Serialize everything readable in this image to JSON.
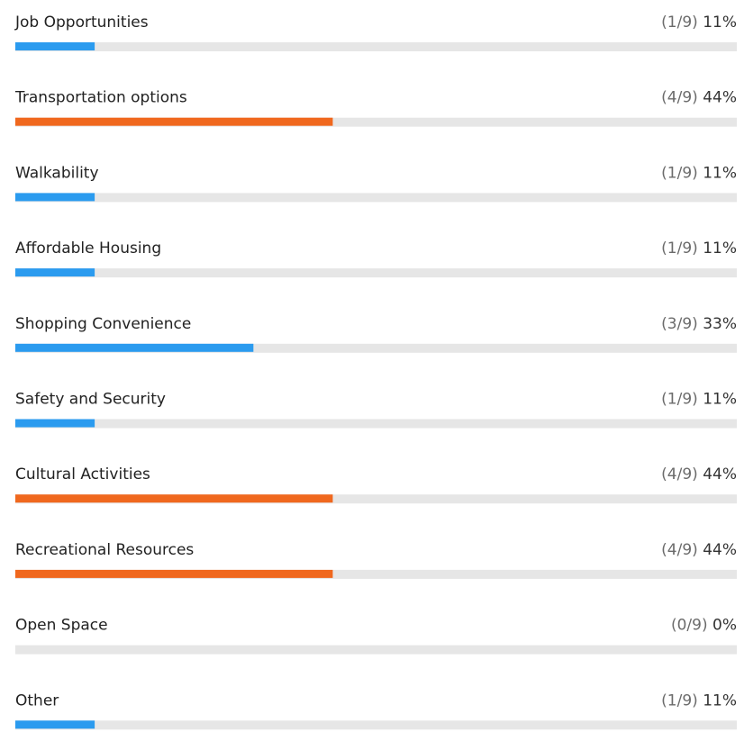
{
  "chart_data": {
    "type": "hbar",
    "categories": [
      "Job Opportunities",
      "Transportation options",
      "Walkability",
      "Affordable Housing",
      "Shopping Convenience",
      "Safety and Security",
      "Cultural Activities",
      "Recreational Resources",
      "Open Space",
      "Other"
    ],
    "count_labels": [
      "(1/9)",
      "(4/9)",
      "(1/9)",
      "(1/9)",
      "(3/9)",
      "(1/9)",
      "(4/9)",
      "(4/9)",
      "(0/9)",
      "(1/9)"
    ],
    "values": [
      11,
      44,
      11,
      11,
      33,
      11,
      44,
      44,
      0,
      11
    ],
    "value_labels": [
      "11%",
      "44%",
      "11%",
      "11%",
      "33%",
      "11%",
      "44%",
      "44%",
      "0%",
      "11%"
    ],
    "colors": [
      "#2b9bef",
      "#f0681e",
      "#2b9bef",
      "#2b9bef",
      "#2b9bef",
      "#2b9bef",
      "#f0681e",
      "#f0681e",
      "#2b9bef",
      "#2b9bef"
    ],
    "xlim": [
      0,
      100
    ]
  }
}
